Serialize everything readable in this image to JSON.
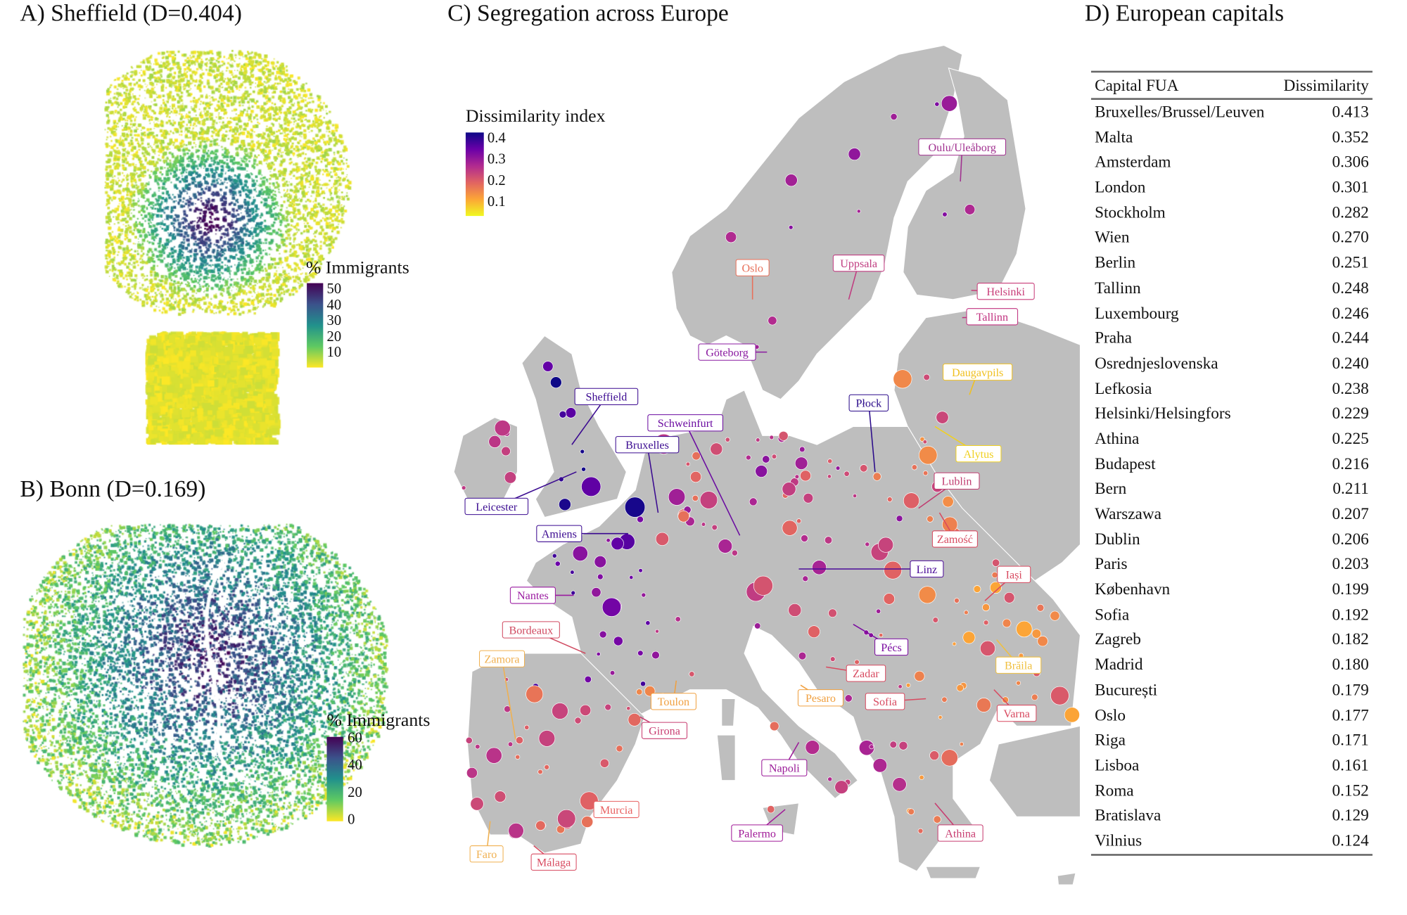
{
  "panels": {
    "a_title": "A) Sheffield (D=0.404)",
    "b_title": "B) Bonn (D=0.169)",
    "c_title": "C) Segregation across Europe",
    "d_title": "D) European capitals"
  },
  "sheffield_legend": {
    "title": "% Immigrants",
    "ticks": [
      "50",
      "40",
      "30",
      "20",
      "10"
    ]
  },
  "bonn_legend": {
    "title": "% Immigrants",
    "ticks": [
      "60",
      "40",
      "20",
      "0"
    ]
  },
  "europe_legend": {
    "title": "Dissimilarity index",
    "ticks": [
      "0.4",
      "0.3",
      "0.2",
      "0.1"
    ]
  },
  "colors": {
    "land": "#bebebe",
    "viridis": [
      "#fde725",
      "#5ec962",
      "#21918c",
      "#3b528b",
      "#440154"
    ],
    "plasma": [
      "#f0f921",
      "#fca636",
      "#e16462",
      "#b12a90",
      "#6a00a8",
      "#0d0887"
    ]
  },
  "city_labels": [
    {
      "name": "Oulu/Uleåborg",
      "color": "#a0308f"
    },
    {
      "name": "Oslo",
      "color": "#e8705a"
    },
    {
      "name": "Uppsala",
      "color": "#c03c80"
    },
    {
      "name": "Helsinki",
      "color": "#c83c78"
    },
    {
      "name": "Tallinn",
      "color": "#c0307f"
    },
    {
      "name": "Göteborg",
      "color": "#8a1aa0"
    },
    {
      "name": "Daugavpils",
      "color": "#f0c020"
    },
    {
      "name": "Sheffield",
      "color": "#3a0890"
    },
    {
      "name": "Płock",
      "color": "#2a0a8a"
    },
    {
      "name": "Schweinfurt",
      "color": "#6a0aa0"
    },
    {
      "name": "Bruxelles",
      "color": "#3a0a90"
    },
    {
      "name": "Alytus",
      "color": "#f0d020"
    },
    {
      "name": "Lublin",
      "color": "#c03c70"
    },
    {
      "name": "Leicester",
      "color": "#3a0a90"
    },
    {
      "name": "Amiens",
      "color": "#3a0890"
    },
    {
      "name": "Zamość",
      "color": "#d84a60"
    },
    {
      "name": "Linz",
      "color": "#4a0a98"
    },
    {
      "name": "Iași",
      "color": "#d84a60"
    },
    {
      "name": "Nantes",
      "color": "#9a1aa0"
    },
    {
      "name": "Bordeaux",
      "color": "#d04a60"
    },
    {
      "name": "Pécs",
      "color": "#7a0aa0"
    },
    {
      "name": "Brăila",
      "color": "#f0c040"
    },
    {
      "name": "Zamora",
      "color": "#f0b050"
    },
    {
      "name": "Zadar",
      "color": "#d84a60"
    },
    {
      "name": "Toulon",
      "color": "#f0a040"
    },
    {
      "name": "Pesaro",
      "color": "#f0a040"
    },
    {
      "name": "Sofia",
      "color": "#d84a60"
    },
    {
      "name": "Varna",
      "color": "#d84a60"
    },
    {
      "name": "Girona",
      "color": "#c83c70"
    },
    {
      "name": "Napoli",
      "color": "#9a1a98"
    },
    {
      "name": "Murcia",
      "color": "#e86060"
    },
    {
      "name": "Palermo",
      "color": "#a01a98"
    },
    {
      "name": "Athina",
      "color": "#c83c70"
    },
    {
      "name": "Faro",
      "color": "#f0b050"
    },
    {
      "name": "Málaga",
      "color": "#d84a60"
    }
  ],
  "table": {
    "headers": [
      "Capital FUA",
      "Dissimilarity"
    ],
    "rows": [
      [
        "Bruxelles/Brussel/Leuven",
        "0.413"
      ],
      [
        "Malta",
        "0.352"
      ],
      [
        "Amsterdam",
        "0.306"
      ],
      [
        "London",
        "0.301"
      ],
      [
        "Stockholm",
        "0.282"
      ],
      [
        "Wien",
        "0.270"
      ],
      [
        "Berlin",
        "0.251"
      ],
      [
        "Tallinn",
        "0.248"
      ],
      [
        "Luxembourg",
        "0.246"
      ],
      [
        "Praha",
        "0.244"
      ],
      [
        "Osrednjeslovenska",
        "0.240"
      ],
      [
        "Lefkosia",
        "0.238"
      ],
      [
        "Helsinki/Helsingfors",
        "0.229"
      ],
      [
        "Athina",
        "0.225"
      ],
      [
        "Budapest",
        "0.216"
      ],
      [
        "Bern",
        "0.211"
      ],
      [
        "Warszawa",
        "0.207"
      ],
      [
        "Dublin",
        "0.206"
      ],
      [
        "Paris",
        "0.203"
      ],
      [
        "København",
        "0.199"
      ],
      [
        "Sofia",
        "0.192"
      ],
      [
        "Zagreb",
        "0.182"
      ],
      [
        "Madrid",
        "0.180"
      ],
      [
        "București",
        "0.179"
      ],
      [
        "Oslo",
        "0.177"
      ],
      [
        "Riga",
        "0.171"
      ],
      [
        "Lisboa",
        "0.161"
      ],
      [
        "Roma",
        "0.152"
      ],
      [
        "Bratislava",
        "0.129"
      ],
      [
        "Vilnius",
        "0.124"
      ]
    ]
  }
}
